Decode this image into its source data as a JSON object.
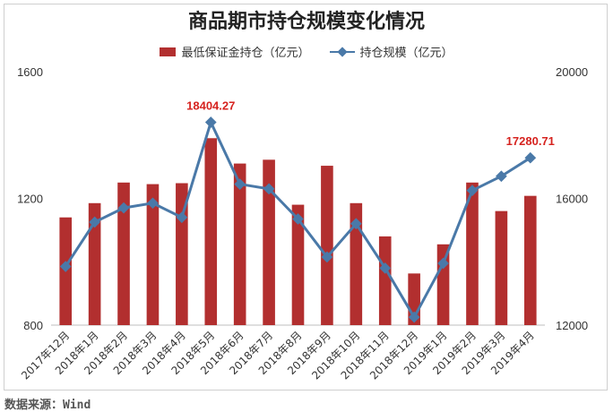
{
  "title": "商品期市持仓规模变化情况",
  "source": "数据来源：Wind",
  "chart_data": {
    "type": "bar",
    "categories": [
      "2017年12月",
      "2018年1月",
      "2018年2月",
      "2018年3月",
      "2018年4月",
      "2018年5月",
      "2018年6月",
      "2018年7月",
      "2018年8月",
      "2018年9月",
      "2018年10月",
      "2018年11月",
      "2018年12月",
      "2019年1月",
      "2019年2月",
      "2019年3月",
      "2019年4月"
    ],
    "series": [
      {
        "name": "最低保证金持仓（亿元）",
        "type": "bar",
        "axis": "left",
        "color": "#b22f2f",
        "values": [
          1140,
          1185,
          1250,
          1245,
          1248,
          1390,
          1310,
          1322,
          1180,
          1303,
          1185,
          1080,
          963,
          1055,
          1250,
          1160,
          1208
        ]
      },
      {
        "name": "持仓规模（亿元）",
        "type": "line",
        "axis": "right",
        "color": "#4a79a8",
        "values": [
          13850,
          15250,
          15700,
          15850,
          15400,
          18404.27,
          16450,
          16300,
          15350,
          14150,
          15200,
          13800,
          12250,
          13950,
          16250,
          16700,
          17280.71
        ]
      }
    ],
    "left_axis": {
      "ylim": [
        800,
        1600
      ],
      "ticks": [
        800,
        1200,
        1600
      ]
    },
    "right_axis": {
      "ylim": [
        12000,
        20000
      ],
      "ticks": [
        12000,
        16000,
        20000
      ]
    },
    "data_labels": [
      {
        "series": 1,
        "index": 5,
        "text": "18404.27"
      },
      {
        "series": 1,
        "index": 16,
        "text": "17280.71"
      }
    ],
    "legend_position": "top",
    "grid": false
  }
}
